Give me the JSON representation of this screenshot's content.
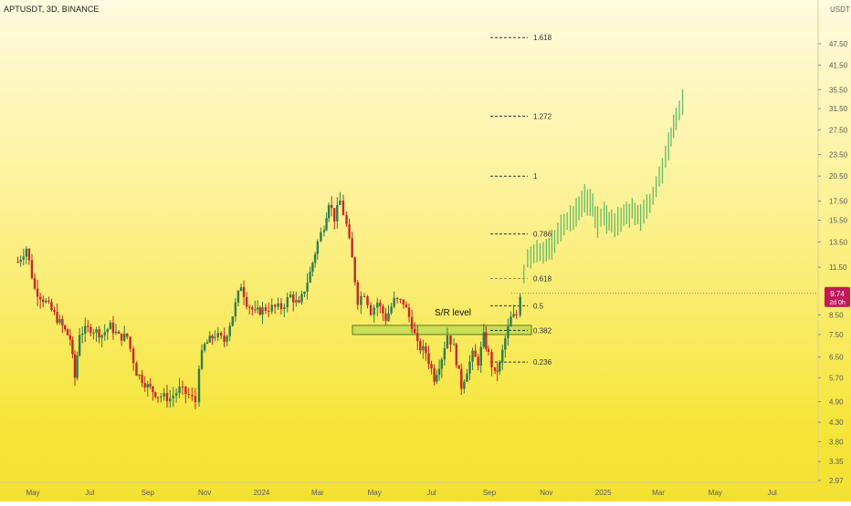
{
  "header": {
    "title": "APTUSDT, 3D, BINANCE",
    "currency": "USDT"
  },
  "price_tag": {
    "last": "9.74",
    "countdown": "2d 0h"
  },
  "annotation": {
    "sr_label": "S/R level"
  },
  "colors": {
    "up": "#26a69a",
    "down": "#ef5350",
    "candle_up": "#2e7d4f",
    "candle_down": "#c62828",
    "projection": "#66bb6a",
    "zone_fill": "#c5dd55",
    "zone_border": "#4e6b10",
    "price_tag": "#c2185b"
  },
  "chart_data": {
    "type": "candlestick",
    "title": "APTUSDT, 3D, BINANCE",
    "x_axis": {
      "tick_labels": [
        "May",
        "Jul",
        "Sep",
        "Nov",
        "2024",
        "Mar",
        "May",
        "Jul",
        "Sep",
        "Nov",
        "2025",
        "Mar",
        "May",
        "Jul"
      ]
    },
    "y_axis": {
      "scale": "log",
      "range": [
        2.97,
        60
      ],
      "tick_labels": [
        "47.50",
        "41.50",
        "35.50",
        "31.50",
        "27.50",
        "23.50",
        "20.50",
        "17.50",
        "15.50",
        "13.50",
        "11.50",
        "8.50",
        "7.50",
        "6.50",
        "5.70",
        "4.90",
        "4.30",
        "3.80",
        "3.35",
        "2.97"
      ]
    },
    "fib_levels": [
      {
        "label": "1.618",
        "value": 49.4
      },
      {
        "label": "1.272",
        "value": 30.0
      },
      {
        "label": "1",
        "value": 20.5
      },
      {
        "label": "0.786",
        "value": 14.2
      },
      {
        "label": "0.618",
        "value": 10.7
      },
      {
        "label": "0.5",
        "value": 9.0
      },
      {
        "label": "0.382",
        "value": 7.7
      },
      {
        "label": "0.236",
        "value": 6.3
      }
    ],
    "sr_zone": {
      "label": "S/R level",
      "low": 7.5,
      "high": 7.95
    },
    "last_price": 9.74,
    "price_path": [
      [
        "2023-04-15",
        11.9
      ],
      [
        "2023-04-24",
        13.0
      ],
      [
        "2023-05-03",
        10.0
      ],
      [
        "2023-05-15",
        9.2
      ],
      [
        "2023-05-27",
        8.3
      ],
      [
        "2023-06-10",
        7.3
      ],
      [
        "2023-06-15",
        5.7
      ],
      [
        "2023-06-20",
        7.6
      ],
      [
        "2023-07-02",
        7.8
      ],
      [
        "2023-07-14",
        7.5
      ],
      [
        "2023-07-23",
        7.9
      ],
      [
        "2023-08-01",
        7.4
      ],
      [
        "2023-08-10",
        7.4
      ],
      [
        "2023-08-20",
        5.9
      ],
      [
        "2023-09-01",
        5.4
      ],
      [
        "2023-09-12",
        5.1
      ],
      [
        "2023-09-25",
        5.0
      ],
      [
        "2023-10-05",
        5.3
      ],
      [
        "2023-10-15",
        5.1
      ],
      [
        "2023-10-22",
        4.9
      ],
      [
        "2023-10-26",
        6.2
      ],
      [
        "2023-11-01",
        7.0
      ],
      [
        "2023-11-12",
        7.5
      ],
      [
        "2023-11-22",
        7.2
      ],
      [
        "2023-12-01",
        8.5
      ],
      [
        "2023-12-10",
        10.3
      ],
      [
        "2023-12-16",
        9.2
      ],
      [
        "2023-12-25",
        8.6
      ],
      [
        "2024-01-02",
        8.8
      ],
      [
        "2024-01-12",
        8.9
      ],
      [
        "2024-01-22",
        8.9
      ],
      [
        "2024-02-01",
        9.6
      ],
      [
        "2024-02-10",
        9.0
      ],
      [
        "2024-02-22",
        11.1
      ],
      [
        "2024-03-01",
        13.5
      ],
      [
        "2024-03-08",
        15.0
      ],
      [
        "2024-03-13",
        17.5
      ],
      [
        "2024-03-19",
        15.7
      ],
      [
        "2024-03-25",
        17.5
      ],
      [
        "2024-04-01",
        15.0
      ],
      [
        "2024-04-07",
        12.1
      ],
      [
        "2024-04-13",
        9.3
      ],
      [
        "2024-04-20",
        9.8
      ],
      [
        "2024-04-27",
        8.7
      ],
      [
        "2024-05-04",
        9.2
      ],
      [
        "2024-05-13",
        8.3
      ],
      [
        "2024-05-22",
        9.3
      ],
      [
        "2024-06-01",
        9.2
      ],
      [
        "2024-06-10",
        8.0
      ],
      [
        "2024-06-16",
        7.0
      ],
      [
        "2024-06-25",
        6.7
      ],
      [
        "2024-07-04",
        5.7
      ],
      [
        "2024-07-12",
        6.5
      ],
      [
        "2024-07-18",
        7.5
      ],
      [
        "2024-07-25",
        6.9
      ],
      [
        "2024-08-02",
        5.4
      ],
      [
        "2024-08-08",
        6.0
      ],
      [
        "2024-08-14",
        6.6
      ],
      [
        "2024-08-20",
        6.3
      ],
      [
        "2024-08-26",
        7.4
      ],
      [
        "2024-08-31",
        6.6
      ],
      [
        "2024-09-07",
        5.8
      ],
      [
        "2024-09-12",
        6.2
      ],
      [
        "2024-09-18",
        7.3
      ],
      [
        "2024-09-24",
        8.3
      ],
      [
        "2024-09-30",
        8.5
      ],
      [
        "2024-10-04",
        9.74
      ]
    ],
    "projection_path": [
      [
        "2024-10-08",
        11.0
      ],
      [
        "2024-10-12",
        12.2
      ],
      [
        "2024-10-22",
        12.6
      ],
      [
        "2024-11-01",
        12.9
      ],
      [
        "2024-11-10",
        13.6
      ],
      [
        "2024-11-20",
        15.2
      ],
      [
        "2024-11-30",
        16.0
      ],
      [
        "2024-12-12",
        17.8
      ],
      [
        "2024-12-18",
        17.4
      ],
      [
        "2024-12-26",
        15.4
      ],
      [
        "2025-01-02",
        16.0
      ],
      [
        "2025-01-10",
        15.2
      ],
      [
        "2025-01-20",
        15.6
      ],
      [
        "2025-02-01",
        16.5
      ],
      [
        "2025-02-10",
        16.0
      ],
      [
        "2025-02-20",
        17.2
      ],
      [
        "2025-03-02",
        20.2
      ],
      [
        "2025-03-12",
        25.0
      ],
      [
        "2025-03-20",
        29.0
      ],
      [
        "2025-03-27",
        33.0
      ]
    ]
  }
}
